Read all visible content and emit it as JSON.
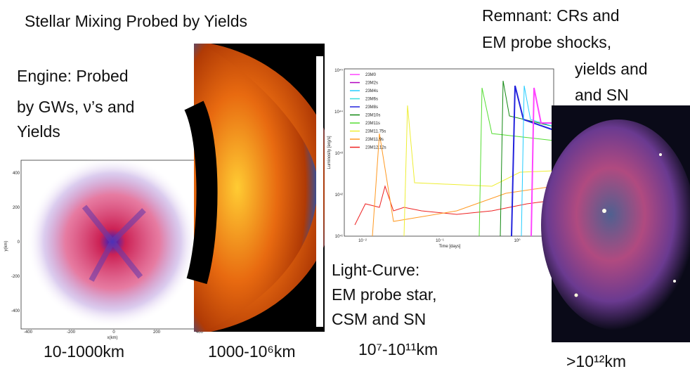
{
  "slide": {
    "title": "Stellar Mixing Probed by Yields",
    "engine_text": [
      "Engine:  Probed",
      "by GWs, ν’s and",
      "Yields"
    ],
    "remnant_text": [
      "Remnant:  CRs and",
      "EM probe shocks,",
      "yields and",
      "and SN"
    ],
    "light_curve_text": [
      "Light-Curve:",
      "EM probe star,",
      "CSM and SN"
    ],
    "scales": [
      "10-1000km",
      "1000-10⁶km",
      "10⁷-10¹¹km",
      ">10¹²km"
    ],
    "engine_plot": {
      "x_label": "x(km)",
      "y_label": "y(km)",
      "xticks": [
        "-400",
        "-200",
        "0",
        "200",
        "400"
      ],
      "yticks": [
        "400",
        "200",
        "0",
        "-200",
        "-400"
      ]
    },
    "light_curve_plot": {
      "x_label": "Time  [days]",
      "y_label": "Luminosity  [erg/s]",
      "xticks": [
        "10⁻²",
        "10⁻¹",
        "10⁰"
      ],
      "yticks": [
        "10⁴⁵",
        "10⁴⁴",
        "10⁴³",
        "10⁴²",
        "10⁴¹"
      ],
      "legend": [
        {
          "name": "23M0",
          "color": "#ff44ff"
        },
        {
          "name": "23M2s",
          "color": "#b000c0"
        },
        {
          "name": "23M4s",
          "color": "#22ccff"
        },
        {
          "name": "23M6s",
          "color": "#33dddd"
        },
        {
          "name": "23M8s",
          "color": "#2222dd"
        },
        {
          "name": "23M10s",
          "color": "#118811"
        },
        {
          "name": "23M11s",
          "color": "#55dd33"
        },
        {
          "name": "23M11.75s",
          "color": "#eeee33"
        },
        {
          "name": "23M11.9s",
          "color": "#ff9922"
        },
        {
          "name": "23M12.12s",
          "color": "#ee2222"
        }
      ]
    }
  }
}
